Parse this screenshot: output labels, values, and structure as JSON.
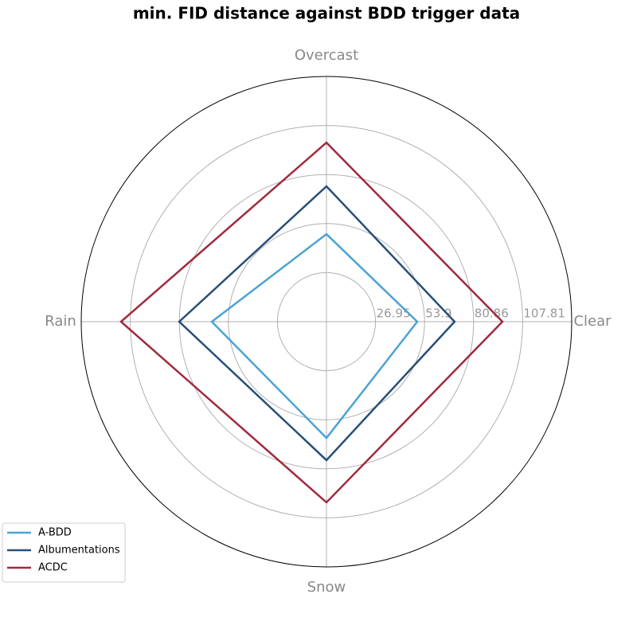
{
  "chart_data": {
    "type": "radar",
    "title": "min. FID distance against BDD trigger data",
    "categories": [
      "Clear",
      "Overcast",
      "Rain",
      "Snow"
    ],
    "series": [
      {
        "name": "A-BDD",
        "color": "#4ba3d4",
        "values": [
          49.9,
          48.1,
          63.0,
          63.9
        ]
      },
      {
        "name": "Albumentations",
        "color": "#274f78",
        "values": [
          70.4,
          74.4,
          80.9,
          76.1
        ]
      },
      {
        "name": "ACDC",
        "color": "#a02a3e",
        "values": [
          96.7,
          98.4,
          112.9,
          99.3
        ]
      }
    ],
    "ylim": [
      0,
      134.76
    ],
    "yticks": [
      26.95,
      53.9,
      80.86,
      107.81
    ],
    "grid": true,
    "legend": "lower left"
  }
}
